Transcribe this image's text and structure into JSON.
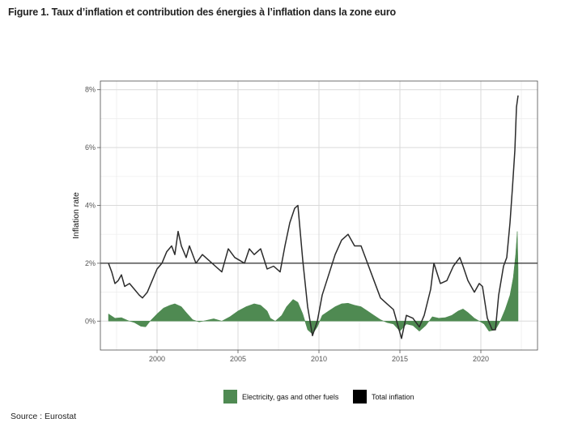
{
  "figure": {
    "title": "Figure 1. Taux d’inflation et contribution des énergies à l’inflation dans la zone euro",
    "source": "Source : Eurostat"
  },
  "colors": {
    "energy": "#4f8a52",
    "total": "#2b2b2b",
    "reference_line": "#000000",
    "grid": "#d9d9d9",
    "panel_border": "#4d4d4d"
  },
  "chart_data": {
    "type": "line",
    "title": "",
    "xlabel": "",
    "ylabel": "Inflation rate",
    "xlim": [
      1996.5,
      2023.5
    ],
    "ylim": [
      -1.0,
      8.3
    ],
    "x_ticks": [
      2000,
      2005,
      2010,
      2015,
      2020
    ],
    "x_tick_labels": [
      "2000",
      "2005",
      "2010",
      "2015",
      "2020"
    ],
    "y_ticks": [
      0,
      2,
      4,
      6,
      8
    ],
    "y_tick_labels": [
      "0%",
      "2%",
      "4%",
      "6%",
      "8%"
    ],
    "grid": true,
    "reference_line_y": 2,
    "legend_position": "bottom",
    "series": [
      {
        "name": "Electricity, gas and other fuels",
        "type": "area",
        "points": [
          [
            1997.0,
            0.25
          ],
          [
            1997.4,
            0.1
          ],
          [
            1997.8,
            0.12
          ],
          [
            1998.2,
            0.02
          ],
          [
            1998.6,
            -0.05
          ],
          [
            1999.0,
            -0.18
          ],
          [
            1999.3,
            -0.2
          ],
          [
            1999.6,
            0.02
          ],
          [
            2000.0,
            0.25
          ],
          [
            2000.4,
            0.45
          ],
          [
            2000.8,
            0.55
          ],
          [
            2001.1,
            0.6
          ],
          [
            2001.5,
            0.5
          ],
          [
            2001.8,
            0.3
          ],
          [
            2002.2,
            0.05
          ],
          [
            2002.6,
            -0.03
          ],
          [
            2003.0,
            0.02
          ],
          [
            2003.5,
            0.08
          ],
          [
            2004.0,
            0.0
          ],
          [
            2004.5,
            0.15
          ],
          [
            2005.0,
            0.35
          ],
          [
            2005.5,
            0.5
          ],
          [
            2006.0,
            0.6
          ],
          [
            2006.4,
            0.55
          ],
          [
            2006.8,
            0.35
          ],
          [
            2007.0,
            0.1
          ],
          [
            2007.3,
            0.0
          ],
          [
            2007.7,
            0.2
          ],
          [
            2008.0,
            0.5
          ],
          [
            2008.4,
            0.75
          ],
          [
            2008.7,
            0.65
          ],
          [
            2009.0,
            0.25
          ],
          [
            2009.3,
            -0.3
          ],
          [
            2009.6,
            -0.45
          ],
          [
            2009.9,
            -0.2
          ],
          [
            2010.2,
            0.2
          ],
          [
            2010.6,
            0.35
          ],
          [
            2011.0,
            0.5
          ],
          [
            2011.4,
            0.6
          ],
          [
            2011.8,
            0.62
          ],
          [
            2012.2,
            0.55
          ],
          [
            2012.6,
            0.5
          ],
          [
            2013.0,
            0.35
          ],
          [
            2013.4,
            0.2
          ],
          [
            2013.8,
            0.05
          ],
          [
            2014.2,
            -0.05
          ],
          [
            2014.6,
            -0.1
          ],
          [
            2015.0,
            -0.35
          ],
          [
            2015.4,
            -0.1
          ],
          [
            2015.8,
            -0.15
          ],
          [
            2016.2,
            -0.35
          ],
          [
            2016.6,
            -0.15
          ],
          [
            2017.0,
            0.15
          ],
          [
            2017.4,
            0.1
          ],
          [
            2017.8,
            0.12
          ],
          [
            2018.2,
            0.2
          ],
          [
            2018.6,
            0.35
          ],
          [
            2018.9,
            0.42
          ],
          [
            2019.2,
            0.3
          ],
          [
            2019.6,
            0.1
          ],
          [
            2019.9,
            0.0
          ],
          [
            2020.2,
            -0.1
          ],
          [
            2020.5,
            -0.35
          ],
          [
            2020.9,
            -0.3
          ],
          [
            2021.2,
            0.0
          ],
          [
            2021.5,
            0.4
          ],
          [
            2021.8,
            0.9
          ],
          [
            2022.0,
            1.5
          ],
          [
            2022.15,
            2.3
          ],
          [
            2022.25,
            3.1
          ],
          [
            2022.3,
            1.8
          ]
        ]
      },
      {
        "name": "Total inflation",
        "type": "line",
        "points": [
          [
            1997.0,
            2.0
          ],
          [
            1997.2,
            1.7
          ],
          [
            1997.4,
            1.3
          ],
          [
            1997.6,
            1.4
          ],
          [
            1997.8,
            1.6
          ],
          [
            1998.0,
            1.2
          ],
          [
            1998.3,
            1.3
          ],
          [
            1998.6,
            1.1
          ],
          [
            1998.9,
            0.9
          ],
          [
            1999.1,
            0.8
          ],
          [
            1999.4,
            1.0
          ],
          [
            1999.7,
            1.4
          ],
          [
            2000.0,
            1.8
          ],
          [
            2000.3,
            2.0
          ],
          [
            2000.6,
            2.4
          ],
          [
            2000.9,
            2.6
          ],
          [
            2001.1,
            2.3
          ],
          [
            2001.3,
            3.1
          ],
          [
            2001.5,
            2.6
          ],
          [
            2001.8,
            2.2
          ],
          [
            2002.0,
            2.6
          ],
          [
            2002.4,
            2.0
          ],
          [
            2002.8,
            2.3
          ],
          [
            2003.2,
            2.1
          ],
          [
            2003.6,
            1.9
          ],
          [
            2004.0,
            1.7
          ],
          [
            2004.4,
            2.5
          ],
          [
            2004.8,
            2.2
          ],
          [
            2005.1,
            2.1
          ],
          [
            2005.4,
            2.0
          ],
          [
            2005.7,
            2.5
          ],
          [
            2006.0,
            2.3
          ],
          [
            2006.4,
            2.5
          ],
          [
            2006.8,
            1.8
          ],
          [
            2007.2,
            1.9
          ],
          [
            2007.6,
            1.7
          ],
          [
            2007.9,
            2.6
          ],
          [
            2008.2,
            3.4
          ],
          [
            2008.5,
            3.9
          ],
          [
            2008.7,
            4.0
          ],
          [
            2009.0,
            2.1
          ],
          [
            2009.3,
            0.5
          ],
          [
            2009.6,
            -0.5
          ],
          [
            2009.9,
            0.0
          ],
          [
            2010.2,
            0.9
          ],
          [
            2010.6,
            1.6
          ],
          [
            2011.0,
            2.3
          ],
          [
            2011.4,
            2.8
          ],
          [
            2011.8,
            3.0
          ],
          [
            2012.2,
            2.6
          ],
          [
            2012.6,
            2.6
          ],
          [
            2013.0,
            2.0
          ],
          [
            2013.4,
            1.4
          ],
          [
            2013.8,
            0.8
          ],
          [
            2014.2,
            0.6
          ],
          [
            2014.6,
            0.4
          ],
          [
            2014.9,
            -0.2
          ],
          [
            2015.1,
            -0.6
          ],
          [
            2015.4,
            0.2
          ],
          [
            2015.8,
            0.1
          ],
          [
            2016.2,
            -0.2
          ],
          [
            2016.5,
            0.2
          ],
          [
            2016.9,
            1.1
          ],
          [
            2017.1,
            2.0
          ],
          [
            2017.5,
            1.3
          ],
          [
            2017.9,
            1.4
          ],
          [
            2018.3,
            1.9
          ],
          [
            2018.7,
            2.2
          ],
          [
            2018.9,
            1.9
          ],
          [
            2019.2,
            1.4
          ],
          [
            2019.6,
            1.0
          ],
          [
            2019.9,
            1.3
          ],
          [
            2020.1,
            1.2
          ],
          [
            2020.4,
            0.1
          ],
          [
            2020.7,
            -0.3
          ],
          [
            2020.9,
            -0.3
          ],
          [
            2021.1,
            0.9
          ],
          [
            2021.4,
            1.9
          ],
          [
            2021.6,
            2.2
          ],
          [
            2021.8,
            3.4
          ],
          [
            2021.95,
            4.6
          ],
          [
            2022.1,
            5.9
          ],
          [
            2022.2,
            7.4
          ],
          [
            2022.3,
            7.8
          ]
        ]
      }
    ]
  },
  "legend": {
    "items": [
      {
        "label": "Electricity, gas and other fuels"
      },
      {
        "label": "Total inflation"
      }
    ]
  }
}
